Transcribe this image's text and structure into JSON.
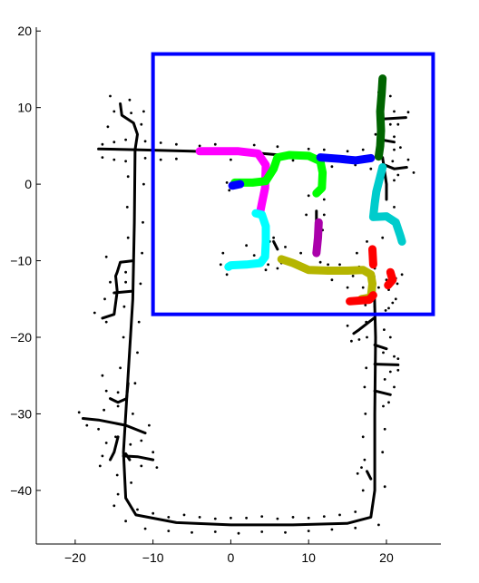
{
  "chart_data": {
    "type": "line",
    "title": "",
    "xlabel": "",
    "ylabel": "",
    "xlim": [
      -25,
      27
    ],
    "ylim": [
      -47,
      20.5
    ],
    "grid": false,
    "legend": "none",
    "xticks": [
      {
        "v": -20,
        "label": "−20"
      },
      {
        "v": -10,
        "label": "−10"
      },
      {
        "v": 0,
        "label": "0"
      },
      {
        "v": 10,
        "label": "10"
      },
      {
        "v": 20,
        "label": "20"
      }
    ],
    "yticks": [
      {
        "v": 20,
        "label": "20"
      },
      {
        "v": 10,
        "label": "10"
      },
      {
        "v": 0,
        "label": "0"
      },
      {
        "v": -10,
        "label": "−10"
      },
      {
        "v": -20,
        "label": "−20"
      },
      {
        "v": -30,
        "label": "−30"
      },
      {
        "v": -40,
        "label": "−40"
      }
    ],
    "trajectory": {
      "color": "#000000",
      "segments": [
        [
          [
            -12.3,
            4.5
          ],
          [
            -12.4,
            -5
          ],
          [
            -12.6,
            -15
          ],
          [
            -13.2,
            -25
          ],
          [
            -13.8,
            -35
          ],
          [
            -13.5,
            -41
          ],
          [
            -12.2,
            -43.2
          ],
          [
            -7,
            -44.2
          ],
          [
            0,
            -44.5
          ],
          [
            8,
            -44.5
          ],
          [
            15,
            -44.3
          ],
          [
            18,
            -43.5
          ],
          [
            18.5,
            -40
          ],
          [
            18.5,
            -30
          ],
          [
            18.6,
            -20
          ],
          [
            18.4,
            -12
          ]
        ],
        [
          [
            -17,
            4.6
          ],
          [
            -12.3,
            4.5
          ],
          [
            -5,
            4.3
          ],
          [
            4,
            4
          ],
          [
            10,
            3.5
          ],
          [
            14,
            3.1
          ],
          [
            18,
            3.3
          ]
        ],
        [
          [
            -12.3,
            4.5
          ],
          [
            -12,
            6.5
          ],
          [
            -12.5,
            8
          ],
          [
            -14,
            9
          ],
          [
            -14.2,
            10.5
          ]
        ],
        [
          [
            -12.6,
            -10
          ],
          [
            -14.2,
            -10.2
          ],
          [
            -14.6,
            -11.5
          ],
          [
            -14.8,
            -12
          ],
          [
            -14.6,
            -14
          ],
          [
            -15,
            -17
          ],
          [
            -16.5,
            -17.5
          ]
        ],
        [
          [
            -12.8,
            -14
          ],
          [
            -15,
            -14.2
          ]
        ],
        [
          [
            -13.2,
            -26
          ],
          [
            -13.4,
            -28
          ],
          [
            -14.5,
            -28.5
          ],
          [
            -15.5,
            -28
          ]
        ],
        [
          [
            -13.5,
            -31.5
          ],
          [
            -17,
            -30.8
          ],
          [
            -19,
            -30.6
          ]
        ],
        [
          [
            -13.5,
            -31.5
          ],
          [
            -11,
            -32.5
          ]
        ],
        [
          [
            -13.8,
            -35.5
          ],
          [
            -12,
            -35.6
          ],
          [
            -10,
            -36
          ]
        ],
        [
          [
            -14.5,
            -33
          ],
          [
            -15,
            -35
          ],
          [
            -15.5,
            -36
          ]
        ],
        [
          [
            -13,
            -36
          ],
          [
            -13.5,
            -35.2
          ]
        ],
        [
          [
            18.4,
            -17.5
          ],
          [
            16.5,
            -19
          ],
          [
            15.8,
            -19.5
          ]
        ],
        [
          [
            18.5,
            -21
          ],
          [
            20,
            -21.5
          ]
        ],
        [
          [
            18.5,
            -23.5
          ],
          [
            21.5,
            -23.6
          ]
        ],
        [
          [
            18.5,
            -27
          ],
          [
            20.5,
            -27.5
          ]
        ],
        [
          [
            19.5,
            3.5
          ],
          [
            20,
            0
          ],
          [
            20,
            -2
          ]
        ],
        [
          [
            19.5,
            8.5
          ],
          [
            22.5,
            8.7
          ]
        ],
        [
          [
            19.3,
            5.8
          ],
          [
            21,
            5.5
          ]
        ],
        [
          [
            19.8,
            2.5
          ],
          [
            21,
            2
          ],
          [
            22.6,
            2.2
          ]
        ],
        [
          [
            17.5,
            -37.5
          ],
          [
            18,
            -38.5
          ]
        ],
        [
          [
            11,
            -3.5
          ],
          [
            11,
            -5.5
          ]
        ],
        [
          [
            5.5,
            -7.5
          ],
          [
            6,
            -8.5
          ]
        ],
        [
          [
            1.5,
            0
          ],
          [
            0,
            0
          ]
        ]
      ]
    },
    "noise_points": [
      [
        -16.5,
        5.2
      ],
      [
        -15,
        5.5
      ],
      [
        -13.5,
        5.8
      ],
      [
        -11,
        5.6
      ],
      [
        -9,
        5.4
      ],
      [
        -7,
        5.2
      ],
      [
        -16.5,
        3.5
      ],
      [
        -15,
        3.2
      ],
      [
        -13.5,
        3
      ],
      [
        -11,
        3.4
      ],
      [
        -9,
        3.2
      ],
      [
        -7,
        3.3
      ],
      [
        -15.5,
        11.5
      ],
      [
        -13,
        11
      ],
      [
        -15,
        9.5
      ],
      [
        -12.8,
        9.3
      ],
      [
        -15.8,
        7.5
      ],
      [
        -11.5,
        7.8
      ],
      [
        -11.2,
        9.5
      ],
      [
        -13.2,
        1
      ],
      [
        -11.2,
        0
      ],
      [
        -13.3,
        -3
      ],
      [
        -11.3,
        -5
      ],
      [
        -13.2,
        -7
      ],
      [
        -11.4,
        -9
      ],
      [
        -13.5,
        -11.5
      ],
      [
        -11.6,
        -13
      ],
      [
        -13.7,
        -16
      ],
      [
        -11.8,
        -18
      ],
      [
        -13.8,
        -20
      ],
      [
        -12,
        -22
      ],
      [
        -14.2,
        -24
      ],
      [
        -12.3,
        -26
      ],
      [
        -14.5,
        -29
      ],
      [
        -12.6,
        -30
      ],
      [
        -14.8,
        -33
      ],
      [
        -12.9,
        -34
      ],
      [
        -14.6,
        -38
      ],
      [
        -12.8,
        -39
      ],
      [
        -14.5,
        -40.5
      ],
      [
        -16,
        -9.5
      ],
      [
        -15.5,
        -12.8
      ],
      [
        -16.2,
        -15
      ],
      [
        -17.5,
        -16.8
      ],
      [
        -13.5,
        -12.8
      ],
      [
        -16,
        -18
      ],
      [
        -16.5,
        -25
      ],
      [
        -16,
        -27
      ],
      [
        -16.3,
        -29.5
      ],
      [
        -14.5,
        -27.2
      ],
      [
        -19.5,
        -29.8
      ],
      [
        -18.5,
        -31.5
      ],
      [
        -17,
        -32
      ],
      [
        -10.5,
        -31.5
      ],
      [
        -11.5,
        -33.5
      ],
      [
        -16,
        -33.8
      ],
      [
        -16.5,
        -35.5
      ],
      [
        -16.8,
        -36.8
      ],
      [
        -10,
        -35
      ],
      [
        -9.5,
        -37
      ],
      [
        -11.5,
        -36.8
      ],
      [
        -12,
        -42.5
      ],
      [
        -10,
        -43
      ],
      [
        -8,
        -43.5
      ],
      [
        -6,
        -43.2
      ],
      [
        -4,
        -43.5
      ],
      [
        -2,
        -43.7
      ],
      [
        0,
        -43.6
      ],
      [
        2,
        -43.6
      ],
      [
        4,
        -43.4
      ],
      [
        6,
        -43.7
      ],
      [
        8,
        -43.5
      ],
      [
        10,
        -43.6
      ],
      [
        12,
        -43.4
      ],
      [
        14,
        -43.2
      ],
      [
        16,
        -42.8
      ],
      [
        -11,
        -45
      ],
      [
        -8,
        -45.3
      ],
      [
        -5,
        -45.5
      ],
      [
        -2,
        -45.4
      ],
      [
        1,
        -45.6
      ],
      [
        4,
        -45.4
      ],
      [
        7,
        -45.5
      ],
      [
        10,
        -45.3
      ],
      [
        13,
        -45.1
      ],
      [
        16,
        -44.9
      ],
      [
        19,
        -44.5
      ],
      [
        -13.5,
        -44
      ],
      [
        -15,
        -42
      ],
      [
        17,
        -40
      ],
      [
        19.8,
        -39.5
      ],
      [
        17.2,
        -36
      ],
      [
        19.5,
        -35
      ],
      [
        17,
        -33
      ],
      [
        19.8,
        -32
      ],
      [
        17.3,
        -30
      ],
      [
        19.6,
        -29
      ],
      [
        17.2,
        -26.5
      ],
      [
        19.8,
        -25.5
      ],
      [
        17.4,
        -24
      ],
      [
        19.6,
        -22
      ],
      [
        17.5,
        -20
      ],
      [
        19.7,
        -19
      ],
      [
        17.4,
        -18
      ],
      [
        19.9,
        -16.5
      ],
      [
        17.3,
        -15.8
      ],
      [
        15,
        -18.5
      ],
      [
        15.5,
        -20.5
      ],
      [
        16.5,
        -20.3
      ],
      [
        20.5,
        -20
      ],
      [
        21,
        -22.5
      ],
      [
        20.5,
        -24.5
      ],
      [
        21.5,
        -22.8
      ],
      [
        21.5,
        -24.3
      ],
      [
        21,
        -26.5
      ],
      [
        20.3,
        -28.5
      ],
      [
        16.3,
        -37.8
      ],
      [
        16.8,
        -37
      ],
      [
        -4,
        5
      ],
      [
        -2,
        5.2
      ],
      [
        0,
        3.2
      ],
      [
        3,
        5.1
      ],
      [
        6,
        4.9
      ],
      [
        8,
        3.1
      ],
      [
        10,
        4.6
      ],
      [
        12,
        4.5
      ],
      [
        13,
        2.3
      ],
      [
        15,
        4.3
      ],
      [
        16,
        2.5
      ],
      [
        17,
        4.5
      ],
      [
        18,
        2
      ],
      [
        19,
        12
      ],
      [
        20.5,
        11.5
      ],
      [
        19,
        10.2
      ],
      [
        21,
        9.5
      ],
      [
        20.5,
        7.8
      ],
      [
        22.8,
        9.4
      ],
      [
        21.5,
        7.8
      ],
      [
        18.6,
        6.5
      ],
      [
        21,
        6.2
      ],
      [
        21.8,
        4.8
      ],
      [
        21,
        4.5
      ],
      [
        20.8,
        3
      ],
      [
        22.8,
        3.2
      ],
      [
        23.5,
        1.5
      ],
      [
        21.5,
        1.2
      ],
      [
        21,
        0.5
      ],
      [
        19,
        -1
      ],
      [
        21,
        -3
      ],
      [
        1.7,
        4.2
      ],
      [
        0.3,
        0
      ],
      [
        -0.5,
        0.2
      ],
      [
        -0.2,
        -0.8
      ],
      [
        4,
        -5
      ],
      [
        2,
        -8
      ],
      [
        -1,
        -9
      ],
      [
        -1.3,
        -10.5
      ],
      [
        -0.5,
        -11.8
      ],
      [
        3,
        -9.3
      ],
      [
        4.5,
        -11.2
      ],
      [
        4.8,
        -10.5
      ],
      [
        5,
        -7.5
      ],
      [
        7,
        -8.2
      ],
      [
        9,
        -9
      ],
      [
        6.5,
        -10.3
      ],
      [
        9.7,
        -4
      ],
      [
        12,
        -2
      ],
      [
        12,
        -4
      ],
      [
        10,
        -1.5
      ],
      [
        11.8,
        -6
      ],
      [
        12.5,
        -10.5
      ],
      [
        11.5,
        -10.2
      ],
      [
        14,
        -10.5
      ],
      [
        15.5,
        -11
      ],
      [
        16.5,
        -10.8
      ],
      [
        16.2,
        -9
      ],
      [
        15.7,
        -12
      ],
      [
        13,
        -12.5
      ],
      [
        15,
        -13.5
      ],
      [
        17,
        -13.5
      ],
      [
        19,
        -13.5
      ],
      [
        20.3,
        -13.8
      ],
      [
        21.2,
        -15
      ],
      [
        20.8,
        -15.5
      ],
      [
        17,
        -14.8
      ],
      [
        18.5,
        -16
      ],
      [
        16.8,
        -15.5
      ],
      [
        16.3,
        -11
      ],
      [
        17.5,
        -11.5
      ],
      [
        18.3,
        -8.5
      ],
      [
        17.5,
        -7.5
      ],
      [
        19.5,
        -7
      ],
      [
        18.5,
        -11
      ],
      [
        20,
        -12.5
      ],
      [
        21.2,
        -12.3
      ],
      [
        22,
        -11.8
      ],
      [
        21.4,
        -13
      ],
      [
        20.3,
        -16.2
      ],
      [
        6,
        -11
      ],
      [
        5.5,
        -7
      ],
      [
        4,
        -3.3
      ]
    ],
    "colored_segments": [
      {
        "color": "#ff00ff",
        "points": [
          [
            -4,
            4.3
          ],
          [
            1,
            4.3
          ],
          [
            3.5,
            4
          ],
          [
            4.5,
            2.5
          ],
          [
            4.4,
            -0.5
          ],
          [
            4,
            -2.5
          ],
          [
            3.8,
            -3.5
          ]
        ]
      },
      {
        "color": "#00ff00",
        "points": [
          [
            0.5,
            0.2
          ],
          [
            2.8,
            0.2
          ],
          [
            4.5,
            0.4
          ],
          [
            5.5,
            2
          ],
          [
            6,
            3.5
          ],
          [
            7.5,
            3.8
          ],
          [
            10,
            3.7
          ],
          [
            11.5,
            3
          ],
          [
            11.8,
            1.5
          ],
          [
            11.7,
            -0.5
          ],
          [
            11,
            -1.2
          ]
        ]
      },
      {
        "color": "#0000ff",
        "points": [
          [
            11.5,
            3.5
          ],
          [
            14,
            3.3
          ],
          [
            16,
            3.1
          ],
          [
            18,
            3.4
          ]
        ]
      },
      {
        "color": "#0000ff",
        "points": [
          [
            0.2,
            -0.2
          ],
          [
            1.2,
            0
          ]
        ]
      },
      {
        "color": "#006400",
        "points": [
          [
            19.5,
            13.8
          ],
          [
            19.4,
            12
          ],
          [
            19.2,
            9.5
          ],
          [
            19.3,
            7
          ],
          [
            19.2,
            5
          ],
          [
            19,
            3.6
          ]
        ]
      },
      {
        "color": "#00cccc",
        "points": [
          [
            19.5,
            2.2
          ],
          [
            18.7,
            -1
          ],
          [
            18.5,
            -2.5
          ],
          [
            18.3,
            -4.3
          ],
          [
            20,
            -4.2
          ],
          [
            21.2,
            -5
          ],
          [
            21.8,
            -6.8
          ],
          [
            22,
            -7.5
          ]
        ]
      },
      {
        "color": "#00ffff",
        "points": [
          [
            3.2,
            -3.8
          ],
          [
            4,
            -4
          ],
          [
            4.5,
            -5.5
          ],
          [
            4.5,
            -7.5
          ],
          [
            4.4,
            -9.5
          ],
          [
            3.8,
            -10.3
          ],
          [
            2,
            -10.5
          ],
          [
            0,
            -10.6
          ],
          [
            -0.3,
            -10.8
          ]
        ]
      },
      {
        "color": "#aa00aa",
        "points": [
          [
            11.3,
            -5
          ],
          [
            11.2,
            -7
          ],
          [
            11,
            -9
          ]
        ]
      },
      {
        "color": "#b5b500",
        "points": [
          [
            6.5,
            -9.8
          ],
          [
            8,
            -10.3
          ],
          [
            10,
            -11.2
          ],
          [
            12.5,
            -11.3
          ],
          [
            15,
            -11.3
          ],
          [
            17,
            -11.2
          ],
          [
            18,
            -11.8
          ],
          [
            18.2,
            -13
          ],
          [
            18,
            -14.8
          ],
          [
            16.8,
            -15
          ]
        ]
      },
      {
        "color": "#ff0000",
        "points": [
          [
            18.2,
            -8.5
          ],
          [
            18.3,
            -10.5
          ]
        ]
      },
      {
        "color": "#ff0000",
        "points": [
          [
            15.3,
            -15.3
          ],
          [
            17.8,
            -15.1
          ],
          [
            18.3,
            -14.5
          ]
        ]
      },
      {
        "color": "#ff0000",
        "points": [
          [
            20.5,
            -11.5
          ],
          [
            20.8,
            -12.5
          ],
          [
            20.2,
            -13.2
          ]
        ]
      }
    ],
    "region_box": {
      "color": "#0000ff",
      "x0": -10,
      "x1": 26,
      "y0": -17,
      "y1": 17
    }
  }
}
